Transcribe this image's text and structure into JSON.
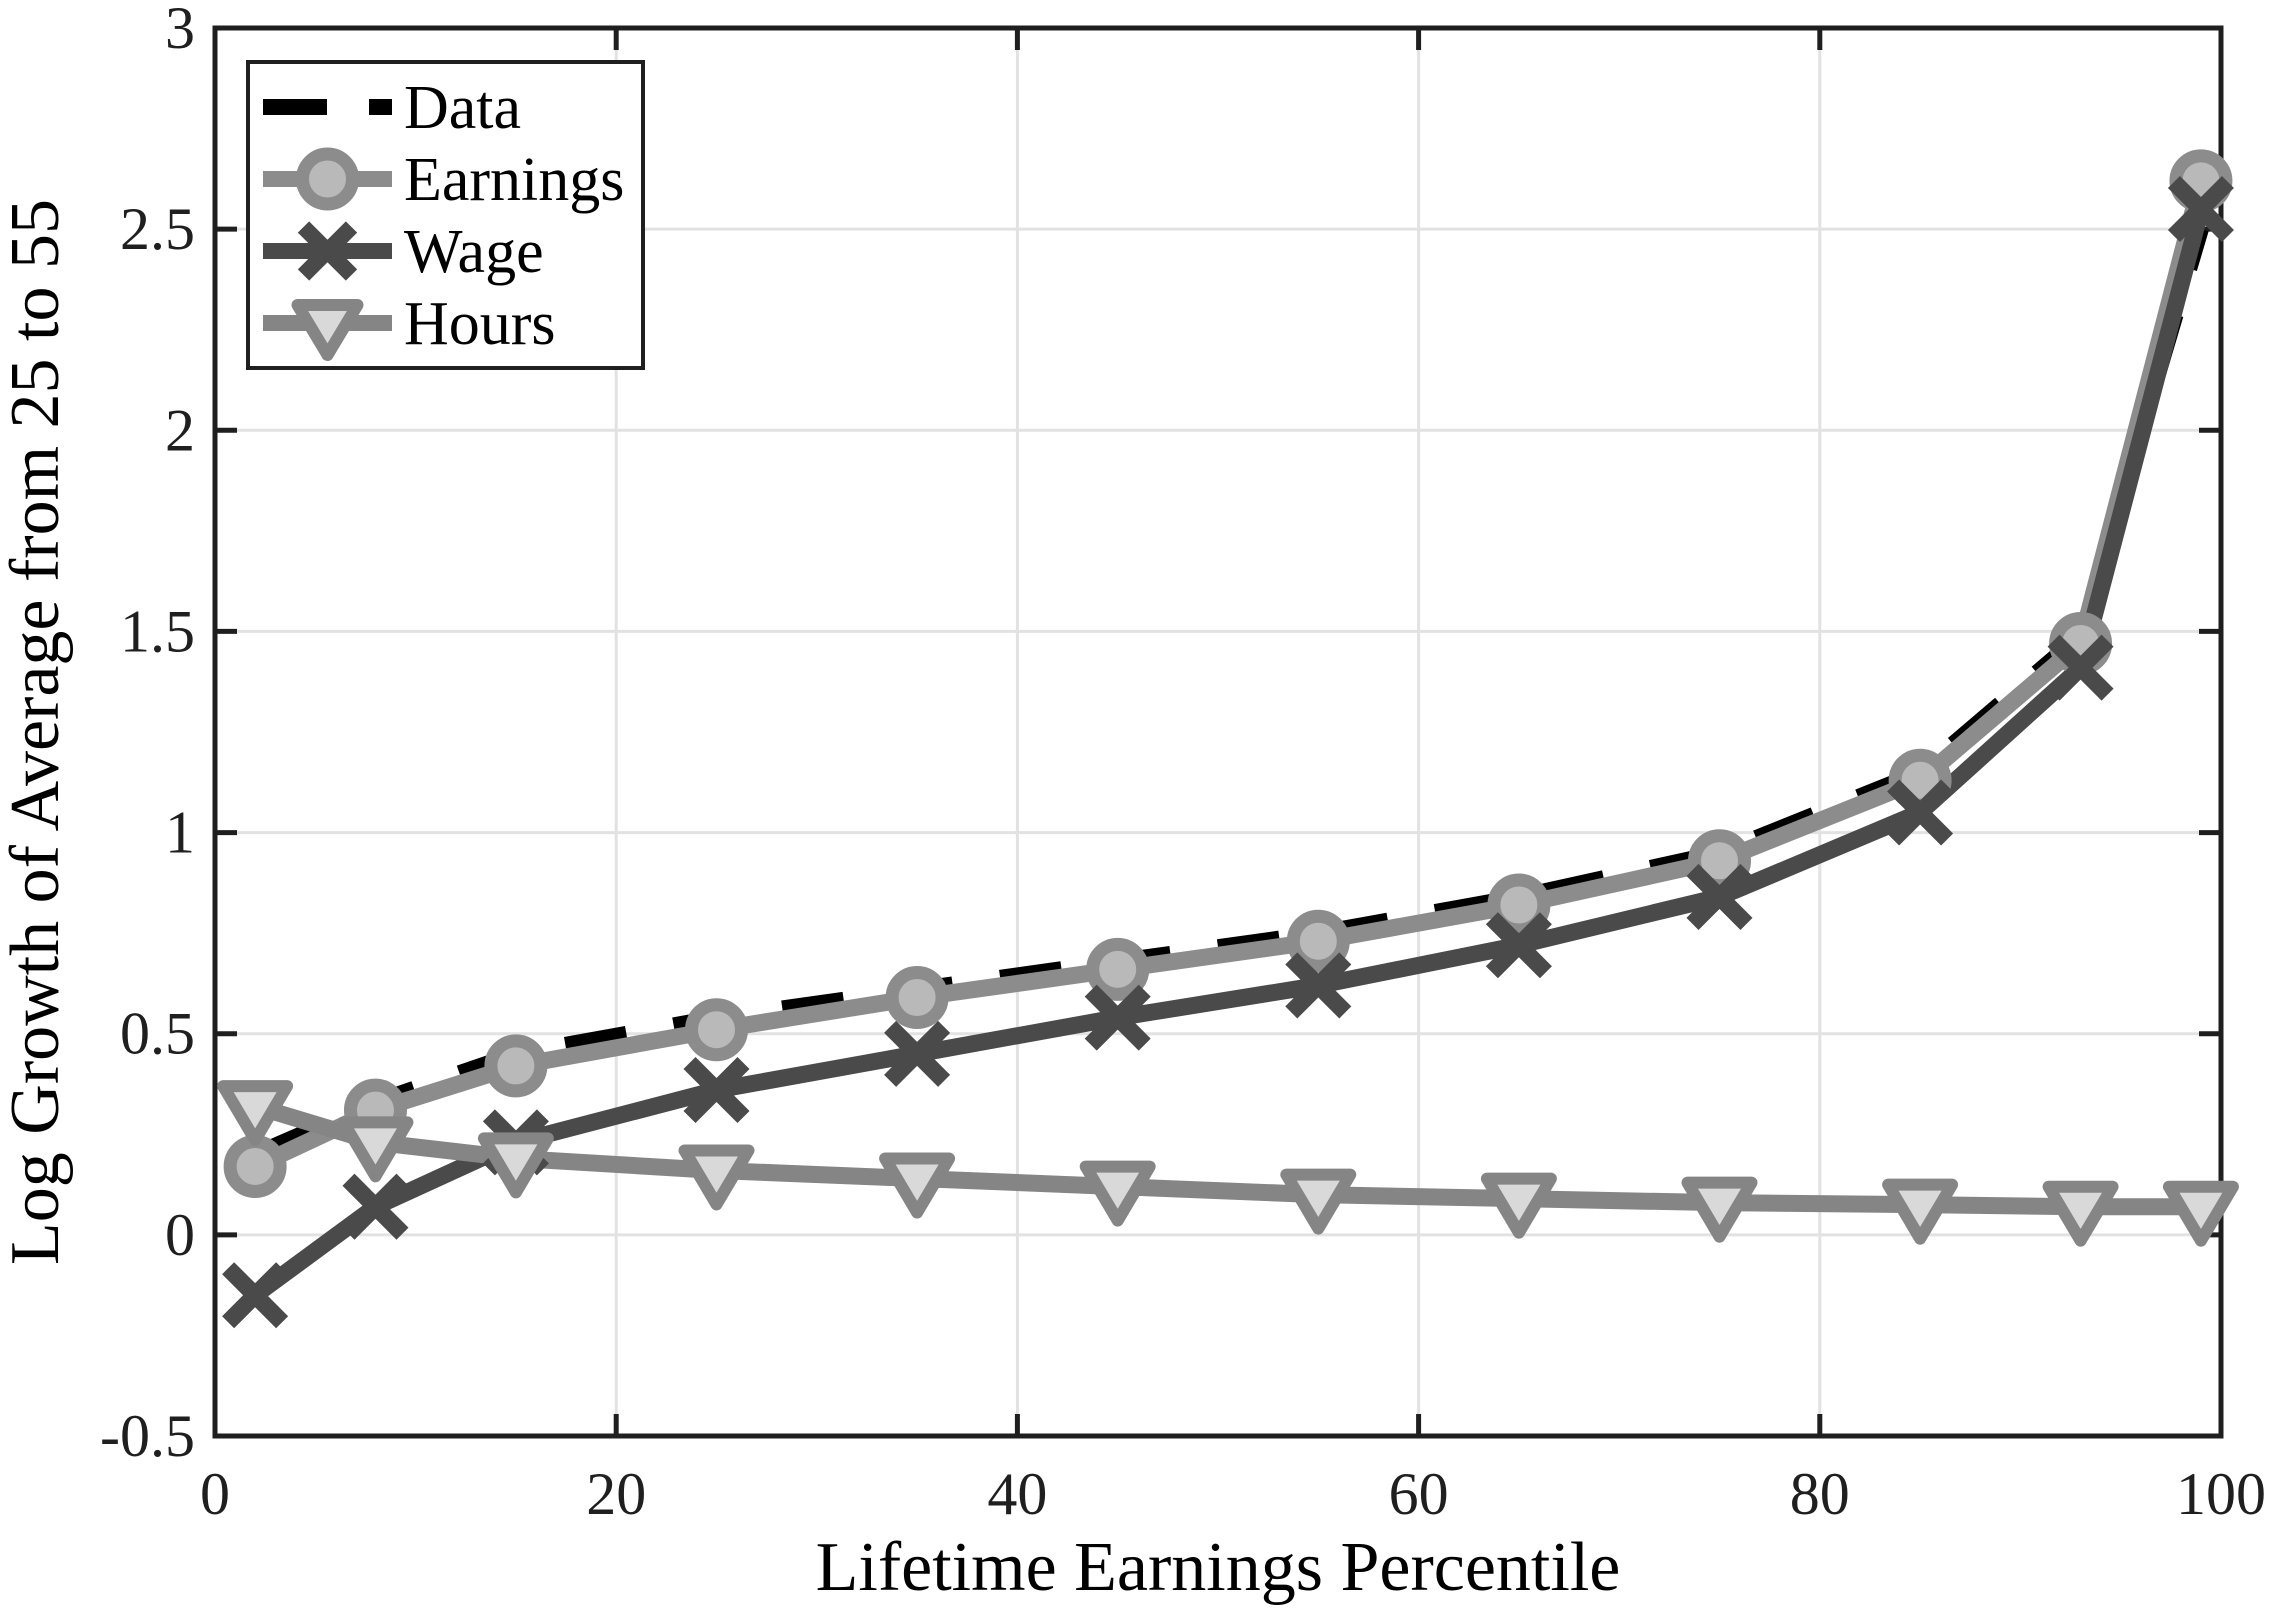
{
  "figure": {
    "background": "#ffffff"
  },
  "chart_data": {
    "type": "line",
    "title": "",
    "xlabel": "Lifetime Earnings Percentile",
    "ylabel": "Log Growth of Average from 25 to 55",
    "xlim": [
      0,
      100
    ],
    "ylim": [
      -0.5,
      3
    ],
    "xticks": [
      0,
      20,
      40,
      60,
      80,
      100
    ],
    "yticks": [
      -0.5,
      0,
      0.5,
      1,
      1.5,
      2,
      2.5,
      3
    ],
    "xtick_labels": [
      "0",
      "20",
      "40",
      "60",
      "80",
      "100"
    ],
    "ytick_labels": [
      "-0.5",
      "0",
      "0.5",
      "1",
      "1.5",
      "2",
      "2.5",
      "3"
    ],
    "grid": true,
    "legend_position": "top-left",
    "x": [
      2,
      8,
      15,
      25,
      35,
      45,
      55,
      65,
      75,
      85,
      93,
      99
    ],
    "series": [
      {
        "name": "Data",
        "line_style": "dashed",
        "color": "#000000",
        "marker": "none",
        "values": [
          0.2,
          0.33,
          0.45,
          0.54,
          0.61,
          0.68,
          0.75,
          0.84,
          0.95,
          1.15,
          1.49,
          2.5
        ]
      },
      {
        "name": "Earnings",
        "line_style": "solid",
        "color": "#8c8c8c",
        "marker": "circle",
        "marker_face": "#b9b9b9",
        "values": [
          0.17,
          0.31,
          0.42,
          0.51,
          0.59,
          0.66,
          0.73,
          0.82,
          0.93,
          1.13,
          1.47,
          2.62
        ]
      },
      {
        "name": "Wage",
        "line_style": "solid",
        "color": "#4a4a4a",
        "marker": "x",
        "values": [
          -0.15,
          0.07,
          0.23,
          0.36,
          0.45,
          0.54,
          0.62,
          0.72,
          0.84,
          1.05,
          1.41,
          2.55
        ]
      },
      {
        "name": "Hours",
        "line_style": "solid",
        "color": "#858585",
        "marker": "triangle-down",
        "marker_face": "#d9d9d9",
        "values": [
          0.32,
          0.23,
          0.19,
          0.16,
          0.14,
          0.12,
          0.1,
          0.09,
          0.08,
          0.075,
          0.07,
          0.07
        ]
      }
    ],
    "colors": {
      "grid": "#e2e2e2",
      "frame": "#1f1f1f",
      "tick_text": "#1f1f1f",
      "label_text": "#000000",
      "legend_border": "#1f1f1f",
      "legend_background": "#ffffff"
    }
  }
}
